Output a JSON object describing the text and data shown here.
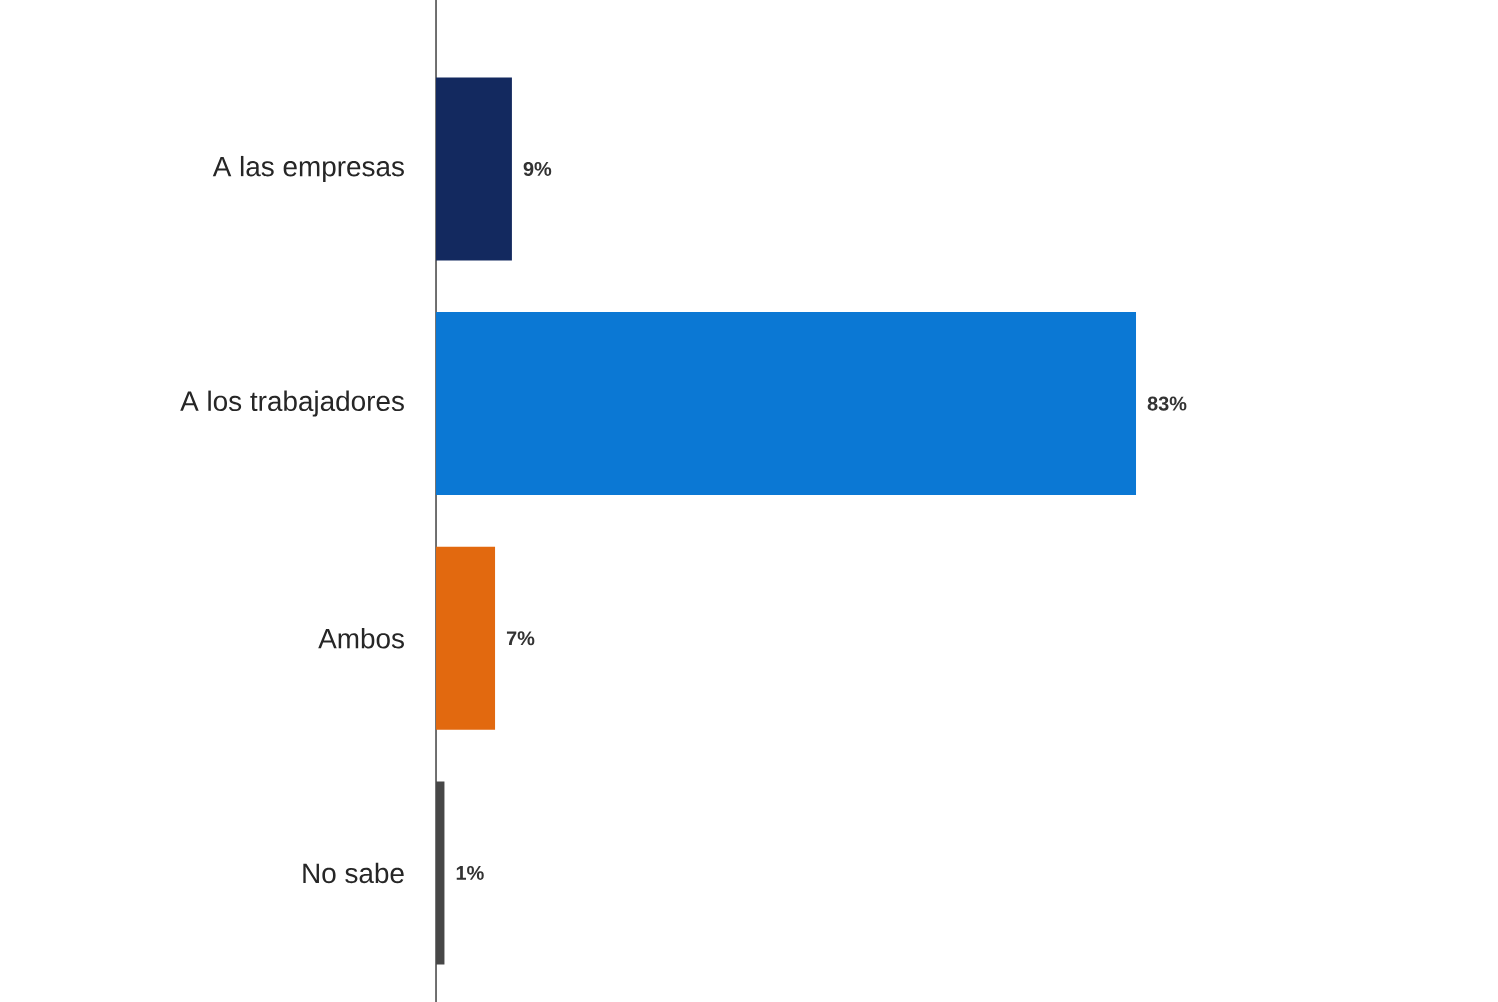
{
  "chart_data": {
    "type": "bar",
    "orientation": "horizontal",
    "categories": [
      "A las empresas",
      "A los trabajadores",
      "Ambos",
      "No sabe"
    ],
    "values": [
      9,
      83,
      7,
      1
    ],
    "colors": [
      "#13295f",
      "#0b78d4",
      "#e2690f",
      "#474747"
    ],
    "value_labels": [
      "9%",
      "83%",
      "7%",
      "1%"
    ],
    "tick_labels": "y"
  }
}
